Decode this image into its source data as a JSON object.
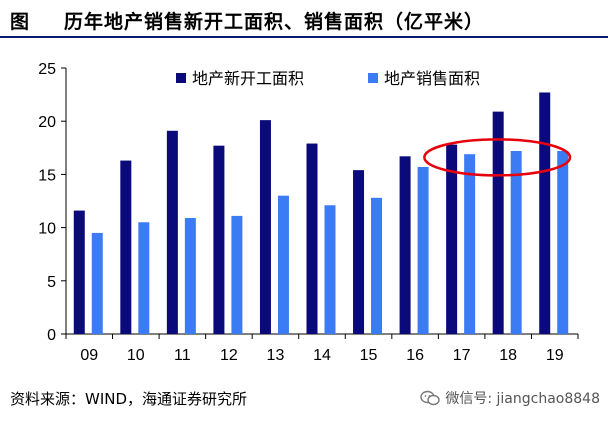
{
  "header": {
    "figure_label": "图",
    "title": "历年地产销售新开工面积、销售面积（亿平米）"
  },
  "footer": {
    "source": "资料来源：WIND，海通证券研究所",
    "watermark": "微信号: jiangchao8848"
  },
  "colors": {
    "series1": "#0a0a7a",
    "series2": "#3b7cf5",
    "highlight": "#e8000b",
    "title_rule": "#0c1a6b"
  },
  "chart_data": {
    "type": "bar",
    "title": "历年地产销售新开工面积、销售面积（亿平米）",
    "categories": [
      "09",
      "10",
      "11",
      "12",
      "13",
      "14",
      "15",
      "16",
      "17",
      "18",
      "19"
    ],
    "series": [
      {
        "name": "地产新开工面积",
        "values": [
          11.6,
          16.3,
          19.1,
          17.7,
          20.1,
          17.9,
          15.4,
          16.7,
          17.8,
          20.9,
          22.7
        ]
      },
      {
        "name": "地产销售面积",
        "values": [
          9.5,
          10.5,
          10.9,
          11.1,
          13.0,
          12.1,
          12.8,
          15.7,
          16.9,
          17.2,
          17.2
        ]
      }
    ],
    "ylim": [
      0,
      25
    ],
    "yticks": [
      0,
      5,
      10,
      15,
      20,
      25
    ],
    "grid": false,
    "legend_position": "top",
    "highlight": {
      "shape": "ellipse",
      "from_category": "17",
      "to_category": "19"
    }
  }
}
